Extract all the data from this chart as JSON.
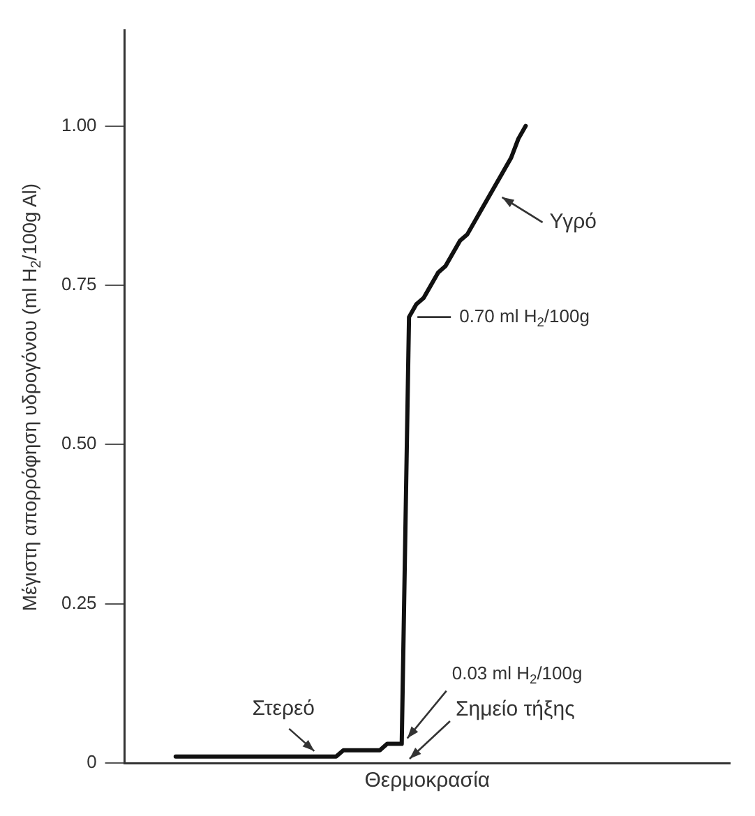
{
  "chart_data": {
    "type": "line",
    "xlabel": "Θερμοκρασία",
    "ylabel": "Μέγιστη απορρόφηση υδρογόνου (ml H$_{2}$/100g Al)",
    "categories": [
      null,
      null,
      null,
      null,
      null,
      null,
      null,
      null,
      null,
      null,
      null,
      null,
      null,
      null,
      null,
      null,
      null,
      null,
      null,
      null,
      null,
      null,
      null,
      null,
      null,
      null,
      null,
      null,
      null,
      null,
      null,
      null,
      null,
      null,
      null,
      null,
      null,
      null,
      null,
      null,
      null,
      null,
      null,
      null,
      null,
      null,
      null,
      null,
      null,
      null,
      null,
      null,
      null,
      null,
      null,
      null,
      null,
      null,
      null,
      null,
      null,
      null,
      null,
      null,
      null,
      null,
      null,
      null,
      null,
      null,
      null,
      null,
      null,
      null,
      null,
      null,
      null,
      null,
      null,
      null,
      null,
      null,
      null,
      null
    ],
    "series": [
      {
        "color": "#111111",
        "values": [
          null,
          null,
          null,
          null,
          null,
          null,
          null,
          0.01,
          0.01,
          0.01,
          0.01,
          0.01,
          0.01,
          0.01,
          0.01,
          0.01,
          0.01,
          0.01,
          0.01,
          0.01,
          0.01,
          0.01,
          0.01,
          0.01,
          0.01,
          0.01,
          0.01,
          0.01,
          0.01,
          0.01,
          0.02,
          0.02,
          0.02,
          0.02,
          0.02,
          0.02,
          0.03,
          0.03,
          0.03,
          0.7,
          0.72,
          0.73,
          0.75,
          0.77,
          0.78,
          0.8,
          0.82,
          0.83,
          0.85,
          0.87,
          0.89,
          0.91,
          0.93,
          0.95,
          0.98,
          1.0,
          null,
          null,
          null,
          null,
          null,
          null,
          null,
          null,
          null,
          null,
          null,
          null,
          null,
          null,
          null,
          null,
          null,
          null,
          null,
          null,
          null,
          null,
          null,
          null,
          null,
          null,
          null,
          null
        ]
      }
    ],
    "ylim": [
      0,
      1.15
    ],
    "yticks": [
      0,
      {
        "value": 0.25,
        "label": "0.25"
      },
      {
        "value": 0.5,
        "label": "0.50"
      },
      {
        "value": 0.75,
        "label": "0.75"
      },
      {
        "value": 1,
        "label": "1.00"
      }
    ],
    "tick_labels": "y",
    "grid": false,
    "legend": false,
    "marker": "none",
    "line_style": "solid",
    "annotations": [
      "Υγρό",
      "0.70 ml H$_{2}$/100g",
      "0.03 ml H$_{2}$/100g",
      "Στερεό",
      "Σημείο τήξης"
    ]
  }
}
